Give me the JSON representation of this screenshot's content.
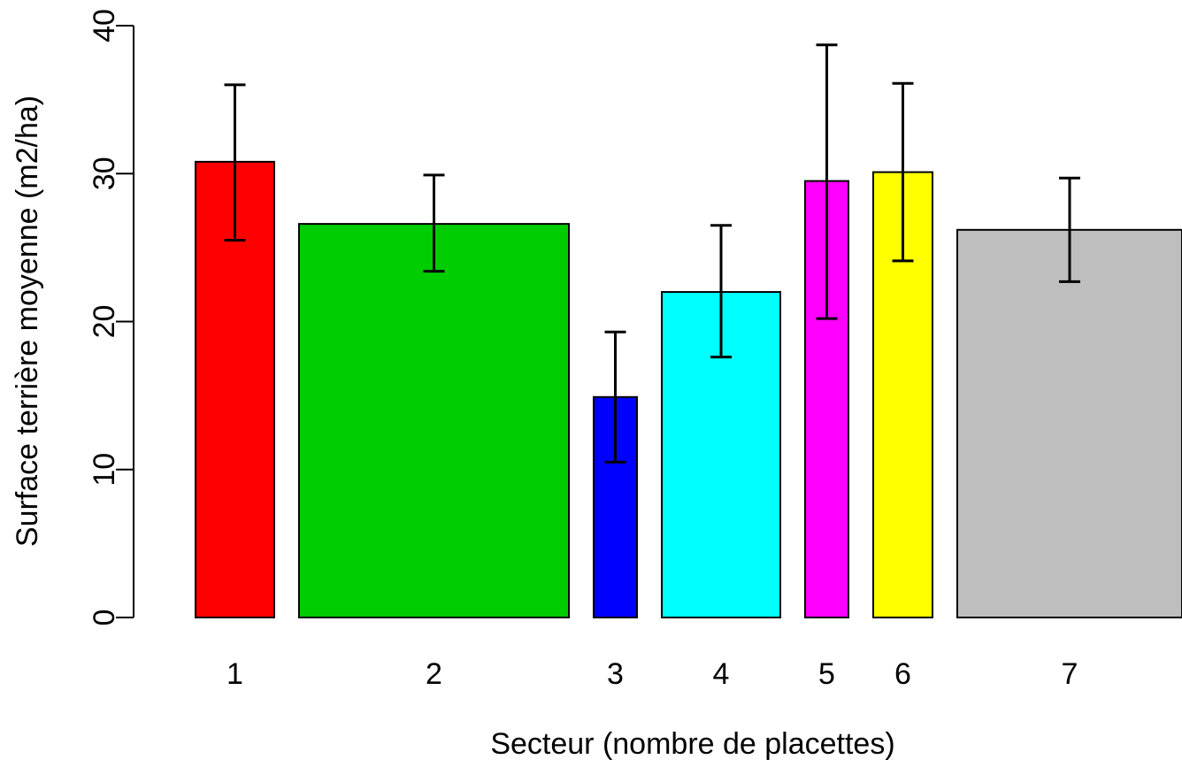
{
  "chart_data": {
    "type": "bar",
    "title": "",
    "xlabel": "Secteur (nombre de placettes)",
    "ylabel": "Surface terrière moyenne (m2/ha)",
    "ylim": [
      0,
      40
    ],
    "yticks": [
      0,
      10,
      20,
      30,
      40
    ],
    "grid": false,
    "categories": [
      "1",
      "2",
      "3",
      "4",
      "5",
      "6",
      "7"
    ],
    "values": [
      30.8,
      26.6,
      14.9,
      22.0,
      29.5,
      30.1,
      26.2
    ],
    "error_low": [
      25.5,
      23.4,
      10.5,
      17.6,
      20.2,
      24.1,
      22.7
    ],
    "error_high": [
      36.0,
      29.9,
      19.3,
      26.5,
      38.7,
      36.1,
      29.7
    ],
    "colors": [
      "#ff0000",
      "#00cd00",
      "#0000ff",
      "#00ffff",
      "#ff00ff",
      "#ffff00",
      "#bebebe"
    ]
  }
}
